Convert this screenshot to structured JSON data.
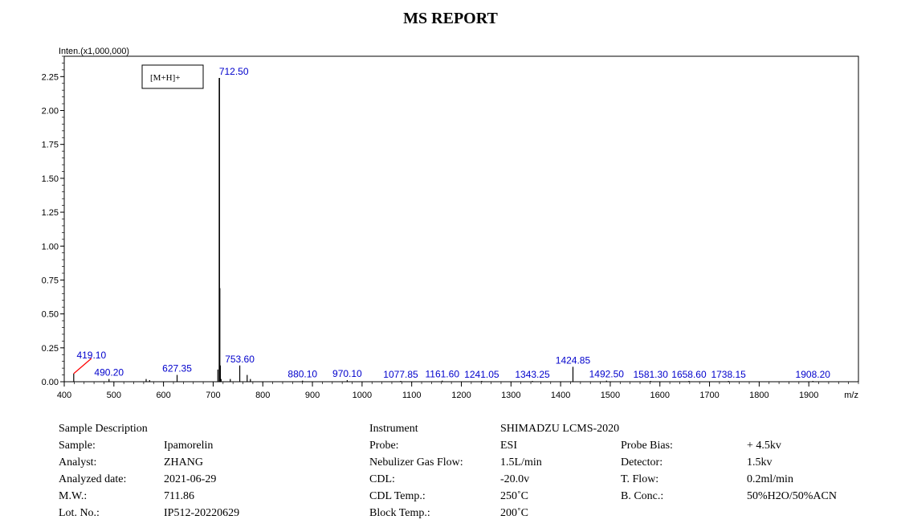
{
  "report": {
    "title": "MS REPORT"
  },
  "chart_data": {
    "type": "bar",
    "ylabel": "Inten.(x1,000,000)",
    "xlabel": "m/z",
    "xlim": [
      400,
      2000
    ],
    "ylim": [
      0,
      2.4
    ],
    "x_ticks": [
      "400",
      "500",
      "600",
      "700",
      "800",
      "900",
      "1000",
      "1100",
      "1200",
      "1300",
      "1400",
      "1500",
      "1600",
      "1700",
      "1800",
      "1900"
    ],
    "y_ticks": [
      "0.00",
      "0.25",
      "0.50",
      "0.75",
      "1.00",
      "1.25",
      "1.50",
      "1.75",
      "2.00",
      "2.25"
    ],
    "annotation": "[M+H]+",
    "peaks": [
      {
        "mz": 419.1,
        "intensity": 0.06,
        "label": "419.10"
      },
      {
        "mz": 490.2,
        "intensity": 0.02,
        "label": "490.20"
      },
      {
        "mz": 565.0,
        "intensity": 0.02,
        "label": ""
      },
      {
        "mz": 572.0,
        "intensity": 0.012,
        "label": ""
      },
      {
        "mz": 627.35,
        "intensity": 0.05,
        "label": "627.35"
      },
      {
        "mz": 709.5,
        "intensity": 0.09,
        "label": ""
      },
      {
        "mz": 712.5,
        "intensity": 2.24,
        "label": "712.50"
      },
      {
        "mz": 713.5,
        "intensity": 0.69,
        "label": ""
      },
      {
        "mz": 714.5,
        "intensity": 0.12,
        "label": ""
      },
      {
        "mz": 716.0,
        "intensity": 0.02,
        "label": ""
      },
      {
        "mz": 734.5,
        "intensity": 0.02,
        "label": ""
      },
      {
        "mz": 753.6,
        "intensity": 0.12,
        "label": "753.60"
      },
      {
        "mz": 768.5,
        "intensity": 0.05,
        "label": ""
      },
      {
        "mz": 775.0,
        "intensity": 0.02,
        "label": ""
      },
      {
        "mz": 880.1,
        "intensity": 0.008,
        "label": "880.10"
      },
      {
        "mz": 970.1,
        "intensity": 0.012,
        "label": "970.10"
      },
      {
        "mz": 1077.85,
        "intensity": 0.006,
        "label": "1077.85"
      },
      {
        "mz": 1161.6,
        "intensity": 0.008,
        "label": "1161.60"
      },
      {
        "mz": 1241.05,
        "intensity": 0.006,
        "label": "1241.05"
      },
      {
        "mz": 1343.25,
        "intensity": 0.006,
        "label": "1343.25"
      },
      {
        "mz": 1424.85,
        "intensity": 0.11,
        "label": "1424.85"
      },
      {
        "mz": 1492.5,
        "intensity": 0.008,
        "label": "1492.50"
      },
      {
        "mz": 1581.3,
        "intensity": 0.006,
        "label": "1581.30"
      },
      {
        "mz": 1658.6,
        "intensity": 0.006,
        "label": "1658.60"
      },
      {
        "mz": 1738.15,
        "intensity": 0.006,
        "label": "1738.15"
      },
      {
        "mz": 1908.2,
        "intensity": 0.006,
        "label": "1908.20"
      }
    ],
    "colors": {
      "axis": "#000000",
      "peak": "#000000",
      "label": "#0000cc",
      "leader": "#ff0000"
    }
  },
  "info_table": [
    [
      "Sample Description",
      "",
      "Instrument",
      "SHIMADZU LCMS-2020",
      "",
      ""
    ],
    [
      "Sample:",
      "Ipamorelin",
      "Probe:",
      "ESI",
      "Probe Bias:",
      "+ 4.5kv"
    ],
    [
      "Analyst:",
      "ZHANG",
      "Nebulizer Gas Flow:",
      "1.5L/min",
      "Detector:",
      "1.5kv"
    ],
    [
      "Analyzed date:",
      "2021-06-29",
      "CDL:",
      "-20.0v",
      "T. Flow:",
      "0.2ml/min"
    ],
    [
      "M.W.:",
      "711.86",
      "CDL Temp.:",
      "250˚C",
      "B. Conc.:",
      "50%H2O/50%ACN"
    ],
    [
      "Lot. No.:",
      "IP512-20220629",
      "Block Temp.:",
      "200˚C",
      "",
      ""
    ]
  ]
}
